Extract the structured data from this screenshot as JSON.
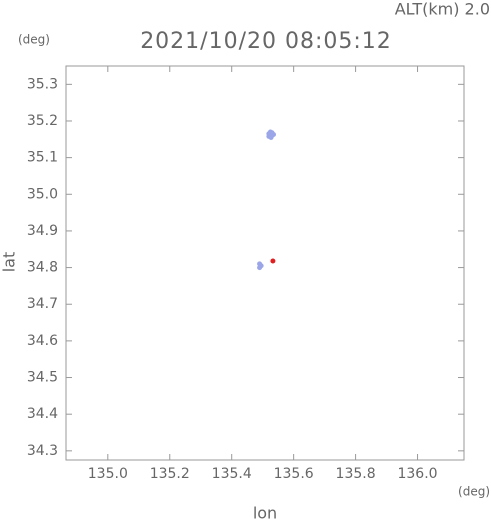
{
  "chart_data": {
    "type": "scatter",
    "title": "2021/10/20 08:05:12",
    "altitude_label": "ALT(km)  2.0",
    "y_unit": "(deg)",
    "x_unit": "(deg)",
    "x_label": "lon",
    "y_label": "lat",
    "xlim": [
      134.865,
      136.15
    ],
    "ylim": [
      34.275,
      35.35
    ],
    "xticks": [
      {
        "value": 135.0,
        "label": "135.0"
      },
      {
        "value": 135.2,
        "label": "135.2"
      },
      {
        "value": 135.4,
        "label": "135.4"
      },
      {
        "value": 135.6,
        "label": "135.6"
      },
      {
        "value": 135.8,
        "label": "135.8"
      },
      {
        "value": 136.0,
        "label": "136.0"
      }
    ],
    "yticks": [
      34.3,
      34.4,
      34.5,
      34.6,
      34.7,
      34.8,
      34.9,
      {
        "value": 35.0,
        "label": "35.0"
      },
      35.1,
      35.2,
      35.3
    ],
    "series": [
      {
        "color": "#9aa6e8",
        "x": [
          135.52,
          135.53,
          135.525,
          135.535,
          135.52,
          135.53,
          135.527,
          135.49,
          135.495,
          135.49
        ],
        "values": [
          35.165,
          35.16,
          35.17,
          35.163,
          35.158,
          35.168,
          35.155,
          34.81,
          34.805,
          34.8
        ]
      },
      {
        "color": "#e02020",
        "x": [
          135.533
        ],
        "values": [
          34.818
        ]
      }
    ]
  }
}
